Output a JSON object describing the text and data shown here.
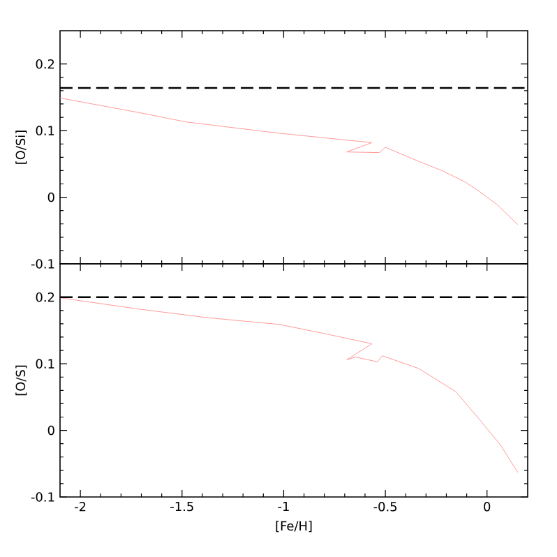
{
  "chart_data": [
    {
      "type": "line",
      "ylabel": "[O/Si]",
      "xlim": [
        -2.1,
        0.2
      ],
      "ylim": [
        -0.1,
        0.25
      ],
      "xticks": [
        -2,
        -1.5,
        -1,
        -0.5,
        0
      ],
      "yticks": [
        -0.1,
        0,
        0.1,
        0.2
      ],
      "tick_labels": "y",
      "grid": false,
      "marker": "none",
      "series": [
        {
          "color": "#ff9999",
          "x": [
            -2.1,
            -1.71,
            -1.48,
            -1.02,
            -0.566,
            -0.69,
            -0.53,
            -0.5,
            -0.337,
            -0.222,
            -0.108,
            -0.039,
            0.053,
            0.151
          ],
          "values": [
            0.149,
            0.127,
            0.113,
            0.096,
            0.082,
            0.068,
            0.067,
            0.075,
            0.054,
            0.04,
            0.023,
            0.009,
            -0.012,
            -0.041
          ]
        }
      ],
      "ref_lines": [
        {
          "axis": "y",
          "value": 0.164,
          "color": "#000000",
          "line_style": "dashed"
        }
      ]
    },
    {
      "type": "line",
      "ylabel": "[O/S]",
      "xlabel": "[Fe/H]",
      "xlim": [
        -2.1,
        0.2
      ],
      "ylim": [
        -0.1,
        0.25
      ],
      "xticks": [
        -2,
        -1.5,
        -1,
        -0.5,
        0
      ],
      "yticks": [
        -0.1,
        0,
        0.1,
        0.2
      ],
      "grid": false,
      "marker": "none",
      "series": [
        {
          "color": "#ff9999",
          "x": [
            -2.1,
            -1.71,
            -1.37,
            -1.02,
            -0.795,
            -0.566,
            -0.69,
            -0.646,
            -0.54,
            -0.515,
            -0.337,
            -0.153,
            -0.039,
            0.064,
            0.151
          ],
          "values": [
            0.199,
            0.182,
            0.169,
            0.159,
            0.145,
            0.13,
            0.106,
            0.11,
            0.103,
            0.112,
            0.093,
            0.058,
            0.017,
            -0.021,
            -0.063
          ]
        }
      ],
      "ref_lines": [
        {
          "axis": "y",
          "value": 0.2,
          "color": "#000000",
          "line_style": "dashed"
        }
      ]
    }
  ]
}
